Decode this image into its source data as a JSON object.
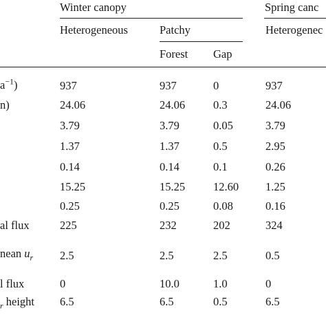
{
  "header": {
    "group1": "Winter canopy",
    "group2": "Spring canc",
    "sub_heterogeneous_1": "Heterogeneous",
    "sub_patchy": "Patchy",
    "sub_heterogeneous_2": "Heterogenec",
    "sub_forest": "Forest",
    "sub_gap": "Gap"
  },
  "rows": [
    {
      "label": "a",
      "label_sup": "−1",
      "label_end": ")",
      "c1": "937",
      "c2": "937",
      "c3": "0",
      "c4": "937"
    },
    {
      "label": "n)",
      "c1": "24.06",
      "c2": "24.06",
      "c3": "0.3",
      "c4": "24.06"
    },
    {
      "label": "",
      "c1": "3.79",
      "c2": "3.79",
      "c3": "0.05",
      "c4": "3.79"
    },
    {
      "label": "",
      "c1": "1.37",
      "c2": "1.37",
      "c3": "0.5",
      "c4": "2.95"
    },
    {
      "label": "",
      "c1": "0.14",
      "c2": "0.14",
      "c3": "0.1",
      "c4": "0.26"
    },
    {
      "label": "",
      "c1": "15.25",
      "c2": "15.25",
      "c3": "12.60",
      "c4": "1.25"
    },
    {
      "label": "",
      "c1": "0.25",
      "c2": "0.25",
      "c3": "0.08",
      "c4": "0.16"
    },
    {
      "label": "al  flux",
      "c1": "225",
      "c2": "232",
      "c3": "202",
      "c4": "324"
    },
    {
      "label": "nean",
      "label_var": "u",
      "label_var_sub": "r",
      "c1": "2.5",
      "c2": "2.5",
      "c3": "2.5",
      "c4": "0.5"
    },
    {
      "label": "l flux",
      "c1": "0",
      "c2": "10.0",
      "c3": "1.0",
      "c4": "0"
    },
    {
      "label_var_sub": "r",
      "label": " height",
      "c1": "6.5",
      "c2": "6.5",
      "c3": "0.5",
      "c4": "6.5"
    }
  ]
}
